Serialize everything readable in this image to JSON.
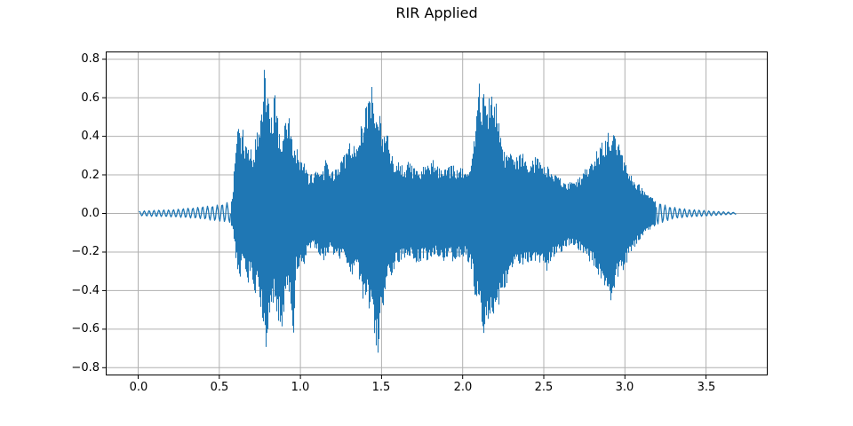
{
  "colors": {
    "waveform": "#1f77b4",
    "grid": "#b0b0b0",
    "spine": "#000000",
    "background": "#ffffff",
    "text": "#000000"
  },
  "chart_data": {
    "type": "line",
    "subtype": "audio-waveform",
    "title": "RIR Applied",
    "xlabel": "",
    "ylabel": "",
    "legend": null,
    "grid": true,
    "xlim": [
      -0.2,
      3.88
    ],
    "ylim": [
      -0.84,
      0.84
    ],
    "x_ticks": [
      0.0,
      0.5,
      1.0,
      1.5,
      2.0,
      2.5,
      3.0,
      3.5
    ],
    "x_tick_labels": [
      "0.0",
      "0.5",
      "1.0",
      "1.5",
      "2.0",
      "2.5",
      "3.0",
      "3.5"
    ],
    "y_ticks": [
      0.8,
      0.6,
      0.4,
      0.2,
      0.0,
      -0.2,
      -0.4,
      -0.6,
      -0.8
    ],
    "y_tick_labels": [
      "0.8",
      "0.6",
      "0.4",
      "0.2",
      "0.0",
      "−0.2",
      "−0.4",
      "−0.6",
      "−0.8"
    ],
    "x_start": 0.0,
    "x_end": 3.69,
    "peak_amplitude": 0.76,
    "min_amplitude": -0.76,
    "envelope_points": [
      [
        0.0,
        0.012,
        -0.012
      ],
      [
        0.05,
        0.015,
        -0.015
      ],
      [
        0.1,
        0.018,
        -0.018
      ],
      [
        0.15,
        0.02,
        -0.018
      ],
      [
        0.2,
        0.02,
        -0.02
      ],
      [
        0.25,
        0.025,
        -0.022
      ],
      [
        0.3,
        0.03,
        -0.025
      ],
      [
        0.35,
        0.032,
        -0.028
      ],
      [
        0.4,
        0.04,
        -0.032
      ],
      [
        0.45,
        0.042,
        -0.04
      ],
      [
        0.5,
        0.05,
        -0.045
      ],
      [
        0.54,
        0.06,
        -0.05
      ],
      [
        0.57,
        0.065,
        -0.055
      ],
      [
        0.585,
        0.12,
        -0.1
      ],
      [
        0.6,
        0.35,
        -0.22
      ],
      [
        0.615,
        0.45,
        -0.3
      ],
      [
        0.63,
        0.4,
        -0.33
      ],
      [
        0.645,
        0.44,
        -0.25
      ],
      [
        0.66,
        0.36,
        -0.3
      ],
      [
        0.675,
        0.33,
        -0.38
      ],
      [
        0.69,
        0.35,
        -0.3
      ],
      [
        0.705,
        0.3,
        -0.35
      ],
      [
        0.72,
        0.38,
        -0.42
      ],
      [
        0.735,
        0.45,
        -0.38
      ],
      [
        0.75,
        0.52,
        -0.45
      ],
      [
        0.765,
        0.62,
        -0.55
      ],
      [
        0.775,
        0.76,
        -0.62
      ],
      [
        0.785,
        0.7,
        -0.71
      ],
      [
        0.795,
        0.62,
        -0.66
      ],
      [
        0.81,
        0.55,
        -0.58
      ],
      [
        0.825,
        0.5,
        -0.5
      ],
      [
        0.84,
        0.63,
        -0.45
      ],
      [
        0.855,
        0.55,
        -0.52
      ],
      [
        0.87,
        0.42,
        -0.58
      ],
      [
        0.885,
        0.4,
        -0.6
      ],
      [
        0.9,
        0.45,
        -0.5
      ],
      [
        0.915,
        0.48,
        -0.35
      ],
      [
        0.93,
        0.5,
        -0.42
      ],
      [
        0.945,
        0.4,
        -0.5
      ],
      [
        0.955,
        0.35,
        -0.68
      ],
      [
        0.975,
        0.35,
        -0.3
      ],
      [
        0.99,
        0.3,
        -0.28
      ],
      [
        1.005,
        0.32,
        -0.25
      ],
      [
        1.02,
        0.28,
        -0.28
      ],
      [
        1.04,
        0.22,
        -0.22
      ],
      [
        1.06,
        0.2,
        -0.2
      ],
      [
        1.08,
        0.22,
        -0.18
      ],
      [
        1.1,
        0.25,
        -0.2
      ],
      [
        1.12,
        0.2,
        -0.22
      ],
      [
        1.14,
        0.22,
        -0.25
      ],
      [
        1.16,
        0.3,
        -0.22
      ],
      [
        1.18,
        0.25,
        -0.2
      ],
      [
        1.2,
        0.22,
        -0.24
      ],
      [
        1.22,
        0.25,
        -0.22
      ],
      [
        1.24,
        0.28,
        -0.26
      ],
      [
        1.26,
        0.3,
        -0.25
      ],
      [
        1.28,
        0.33,
        -0.28
      ],
      [
        1.3,
        0.37,
        -0.3
      ],
      [
        1.32,
        0.33,
        -0.32
      ],
      [
        1.34,
        0.4,
        -0.3
      ],
      [
        1.36,
        0.45,
        -0.35
      ],
      [
        1.38,
        0.48,
        -0.45
      ],
      [
        1.4,
        0.55,
        -0.42
      ],
      [
        1.42,
        0.6,
        -0.5
      ],
      [
        1.435,
        0.67,
        -0.55
      ],
      [
        1.45,
        0.63,
        -0.62
      ],
      [
        1.465,
        0.6,
        -0.72
      ],
      [
        1.475,
        0.58,
        -0.76
      ],
      [
        1.49,
        0.52,
        -0.6
      ],
      [
        1.505,
        0.45,
        -0.5
      ],
      [
        1.52,
        0.42,
        -0.45
      ],
      [
        1.535,
        0.42,
        -0.38
      ],
      [
        1.55,
        0.35,
        -0.35
      ],
      [
        1.57,
        0.3,
        -0.3
      ],
      [
        1.59,
        0.28,
        -0.28
      ],
      [
        1.61,
        0.26,
        -0.26
      ],
      [
        1.64,
        0.25,
        -0.24
      ],
      [
        1.67,
        0.28,
        -0.22
      ],
      [
        1.7,
        0.24,
        -0.25
      ],
      [
        1.73,
        0.22,
        -0.26
      ],
      [
        1.76,
        0.26,
        -0.24
      ],
      [
        1.79,
        0.25,
        -0.25
      ],
      [
        1.82,
        0.28,
        -0.22
      ],
      [
        1.85,
        0.25,
        -0.24
      ],
      [
        1.88,
        0.22,
        -0.26
      ],
      [
        1.91,
        0.24,
        -0.22
      ],
      [
        1.94,
        0.26,
        -0.25
      ],
      [
        1.97,
        0.22,
        -0.24
      ],
      [
        2.0,
        0.25,
        -0.22
      ],
      [
        2.03,
        0.24,
        -0.25
      ],
      [
        2.055,
        0.3,
        -0.3
      ],
      [
        2.08,
        0.5,
        -0.45
      ],
      [
        2.1,
        0.69,
        -0.5
      ],
      [
        2.115,
        0.6,
        -0.55
      ],
      [
        2.13,
        0.62,
        -0.62
      ],
      [
        2.145,
        0.55,
        -0.58
      ],
      [
        2.16,
        0.6,
        -0.55
      ],
      [
        2.175,
        0.63,
        -0.5
      ],
      [
        2.19,
        0.55,
        -0.52
      ],
      [
        2.205,
        0.58,
        -0.48
      ],
      [
        2.22,
        0.5,
        -0.48
      ],
      [
        2.235,
        0.4,
        -0.45
      ],
      [
        2.25,
        0.35,
        -0.4
      ],
      [
        2.27,
        0.3,
        -0.38
      ],
      [
        2.29,
        0.32,
        -0.3
      ],
      [
        2.31,
        0.28,
        -0.28
      ],
      [
        2.34,
        0.3,
        -0.26
      ],
      [
        2.37,
        0.32,
        -0.28
      ],
      [
        2.4,
        0.26,
        -0.25
      ],
      [
        2.43,
        0.28,
        -0.28
      ],
      [
        2.46,
        0.3,
        -0.25
      ],
      [
        2.49,
        0.24,
        -0.28
      ],
      [
        2.52,
        0.26,
        -0.3
      ],
      [
        2.55,
        0.22,
        -0.24
      ],
      [
        2.58,
        0.2,
        -0.22
      ],
      [
        2.61,
        0.18,
        -0.2
      ],
      [
        2.64,
        0.16,
        -0.18
      ],
      [
        2.67,
        0.17,
        -0.16
      ],
      [
        2.7,
        0.18,
        -0.18
      ],
      [
        2.73,
        0.2,
        -0.2
      ],
      [
        2.76,
        0.24,
        -0.22
      ],
      [
        2.79,
        0.28,
        -0.26
      ],
      [
        2.82,
        0.32,
        -0.3
      ],
      [
        2.85,
        0.36,
        -0.35
      ],
      [
        2.875,
        0.4,
        -0.4
      ],
      [
        2.895,
        0.42,
        -0.44
      ],
      [
        2.91,
        0.4,
        -0.46
      ],
      [
        2.93,
        0.41,
        -0.4
      ],
      [
        2.95,
        0.38,
        -0.36
      ],
      [
        2.97,
        0.35,
        -0.33
      ],
      [
        2.99,
        0.3,
        -0.3
      ],
      [
        3.01,
        0.26,
        -0.26
      ],
      [
        3.03,
        0.22,
        -0.22
      ],
      [
        3.05,
        0.2,
        -0.19
      ],
      [
        3.07,
        0.17,
        -0.16
      ],
      [
        3.09,
        0.15,
        -0.14
      ],
      [
        3.12,
        0.12,
        -0.11
      ],
      [
        3.15,
        0.1,
        -0.09
      ],
      [
        3.18,
        0.08,
        -0.07
      ],
      [
        3.21,
        0.065,
        -0.06
      ],
      [
        3.24,
        0.05,
        -0.05
      ],
      [
        3.27,
        0.04,
        -0.04
      ],
      [
        3.3,
        0.035,
        -0.03
      ],
      [
        3.35,
        0.028,
        -0.025
      ],
      [
        3.4,
        0.022,
        -0.02
      ],
      [
        3.45,
        0.02,
        -0.018
      ],
      [
        3.5,
        0.016,
        -0.015
      ],
      [
        3.55,
        0.012,
        -0.012
      ],
      [
        3.6,
        0.01,
        -0.008
      ],
      [
        3.65,
        0.007,
        -0.006
      ],
      [
        3.69,
        0.005,
        -0.004
      ]
    ]
  }
}
